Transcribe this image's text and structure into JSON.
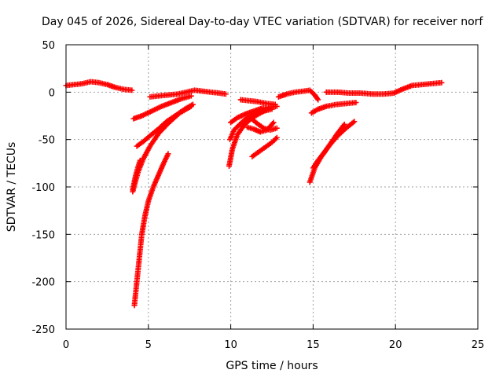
{
  "chart_data": {
    "type": "scatter",
    "title": "Day 045 of 2026, Sidereal Day-to-day VTEC variation (SDTVAR) for receiver norf",
    "xlabel": "GPS time / hours",
    "ylabel": "SDTVAR / TECUs",
    "xlim": [
      0,
      25
    ],
    "ylim": [
      -250,
      50
    ],
    "x_ticks": [
      0,
      5,
      10,
      15,
      20,
      25
    ],
    "y_ticks": [
      50,
      0,
      -50,
      -100,
      -150,
      -200,
      -250
    ],
    "grid": true,
    "marker": "+",
    "color": "#ff0000",
    "arcs": [
      {
        "x": [
          0.0,
          0.5,
          1.0,
          1.5,
          2.0,
          2.5,
          3.0,
          3.5,
          4.0
        ],
        "y": [
          7,
          8,
          9,
          11,
          10,
          8,
          5,
          3,
          2
        ]
      },
      {
        "x": [
          5.1,
          5.6,
          6.2,
          6.8,
          7.3,
          7.8,
          8.3,
          8.8,
          9.3,
          9.7
        ],
        "y": [
          -5,
          -4,
          -3,
          -2,
          0,
          2,
          1,
          0,
          -1,
          -2
        ]
      },
      {
        "x": [
          4.1,
          4.6,
          5.2,
          5.8,
          6.4,
          7.0,
          7.6
        ],
        "y": [
          -28,
          -25,
          -20,
          -15,
          -11,
          -7,
          -4
        ]
      },
      {
        "x": [
          4.3,
          4.7,
          5.1,
          5.6,
          6.1,
          6.7,
          7.2,
          7.7
        ],
        "y": [
          -57,
          -52,
          -46,
          -39,
          -31,
          -24,
          -18,
          -13
        ]
      },
      {
        "x": [
          4.05,
          4.2,
          4.4,
          4.7,
          5.1,
          5.6,
          6.2,
          6.9,
          7.6
        ],
        "y": [
          -105,
          -95,
          -83,
          -70,
          -57,
          -44,
          -33,
          -22,
          -15
        ]
      },
      {
        "x": [
          4.15,
          4.3,
          4.45,
          4.6,
          4.8,
          5.0,
          5.3,
          5.6,
          5.9,
          6.2
        ],
        "y": [
          -225,
          -200,
          -175,
          -150,
          -130,
          -115,
          -100,
          -88,
          -76,
          -65
        ]
      },
      {
        "x": [
          4.05,
          4.2,
          4.35,
          4.5
        ],
        "y": [
          -103,
          -90,
          -80,
          -72
        ]
      },
      {
        "x": [
          10.6,
          11.1,
          11.6,
          12.2,
          12.7
        ],
        "y": [
          -8,
          -9,
          -10,
          -12,
          -13
        ]
      },
      {
        "x": [
          9.9,
          10.1,
          10.4,
          10.8,
          11.3,
          11.8,
          12.3
        ],
        "y": [
          -78,
          -60,
          -45,
          -35,
          -27,
          -22,
          -17
        ]
      },
      {
        "x": [
          9.95,
          10.2,
          10.6,
          11.0,
          11.5,
          12.0,
          12.5
        ],
        "y": [
          -50,
          -40,
          -33,
          -27,
          -23,
          -20,
          -18
        ]
      },
      {
        "x": [
          10.0,
          10.4,
          10.9,
          11.4,
          11.9,
          12.4,
          12.8
        ],
        "y": [
          -32,
          -27,
          -23,
          -20,
          -17,
          -16,
          -15
        ]
      },
      {
        "x": [
          11.2,
          11.6,
          12.0,
          12.4,
          12.8
        ],
        "y": [
          -27,
          -33,
          -38,
          -40,
          -38
        ]
      },
      {
        "x": [
          11.0,
          11.4,
          11.8,
          12.2,
          12.6
        ],
        "y": [
          -37,
          -39,
          -42,
          -40,
          -32
        ]
      },
      {
        "x": [
          11.3,
          11.7,
          12.1,
          12.5,
          12.8
        ],
        "y": [
          -68,
          -63,
          -58,
          -53,
          -48
        ]
      },
      {
        "x": [
          12.9,
          13.4,
          13.9,
          14.4,
          14.8,
          15.1,
          15.3
        ],
        "y": [
          -5,
          -2,
          0,
          1,
          2,
          -3,
          -8
        ]
      },
      {
        "x": [
          14.9,
          15.3,
          15.8,
          16.4,
          17.0,
          17.6
        ],
        "y": [
          -22,
          -18,
          -15,
          -13,
          -12,
          -11
        ]
      },
      {
        "x": [
          14.8,
          15.1,
          15.5,
          16.0,
          16.5,
          17.0,
          17.5
        ],
        "y": [
          -95,
          -80,
          -68,
          -56,
          -46,
          -38,
          -31
        ]
      },
      {
        "x": [
          15.0,
          15.3,
          15.7,
          16.1,
          16.5,
          16.9
        ],
        "y": [
          -80,
          -72,
          -63,
          -53,
          -43,
          -34
        ]
      },
      {
        "x": [
          15.8,
          16.5,
          17.2,
          17.9,
          18.6,
          19.3,
          19.9,
          20.4,
          21.0,
          21.6,
          22.2,
          22.8
        ],
        "y": [
          0,
          0,
          -1,
          -1,
          -2,
          -2,
          -1,
          3,
          7,
          8,
          9,
          10
        ]
      }
    ]
  }
}
